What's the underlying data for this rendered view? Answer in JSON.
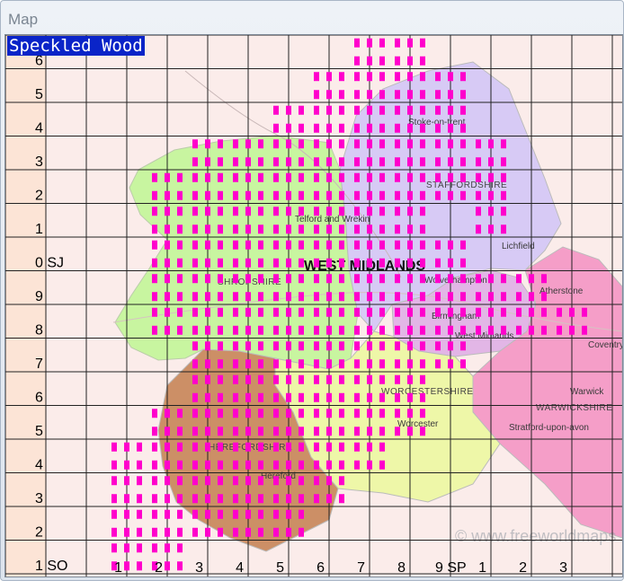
{
  "window": {
    "title": "Map"
  },
  "map": {
    "species": "Speckled Wood",
    "region_label": "WEST MIDLANDS",
    "counties": [
      "SHROPSHIRE",
      "STAFFORDSHIRE",
      "WORCESTERSHIRE",
      "HEREFORDSHIRE",
      "WARWICKSHIRE"
    ],
    "towns": [
      "Stoke-on-trent",
      "Telford and Wrekin",
      "Wolverhampton",
      "Birmingham",
      "West Midlands",
      "Lichfield",
      "Worcester",
      "Hereford",
      "Coventry",
      "Atherstone",
      "Stratford-upon-avon",
      "Warwick"
    ],
    "watermark": "© www.freeworldmaps",
    "row_labels": [
      "6",
      "5",
      "4",
      "3",
      "2",
      "1",
      "0 SJ",
      "9",
      "8",
      "7",
      "6",
      "5",
      "4",
      "3",
      "2",
      "1 SO"
    ],
    "col_labels": [
      "1",
      "2",
      "3",
      "4",
      "5",
      "6",
      "7",
      "8",
      "9 SP",
      "1",
      "2",
      "3"
    ],
    "colors": {
      "record_marker": "#ff00cc",
      "shropshire": "#c8f5a0",
      "staffordshire": "#d7caf5",
      "worcestershire": "#eef7a8",
      "herefordshire": "#cc8f66",
      "warwickshire": "#f59ec8",
      "west_midlands": "#e2b6e6",
      "background": "#fbecea"
    },
    "record_columns": [
      {
        "col": 3,
        "rows": [
          12.5,
          13.5,
          14.5,
          15.5
        ]
      },
      {
        "col": 4,
        "rows": [
          4.5,
          5.5,
          6.5,
          7.5,
          8.5,
          11.5,
          12.5,
          13.5,
          14.5,
          15.5
        ]
      },
      {
        "col": 5,
        "rows": [
          3.5,
          4.5,
          5.5,
          6.5,
          7.5,
          8.5,
          9.5,
          10.5,
          11.5,
          12.5,
          13.5,
          14.5
        ]
      },
      {
        "col": 6,
        "rows": [
          3.5,
          4.5,
          5.5,
          6.5,
          7.5,
          8.5,
          9.5,
          10.5,
          11.5,
          12.5,
          13.5,
          14.5
        ]
      },
      {
        "col": 7,
        "rows": [
          2.5,
          3.5,
          4.5,
          5.5,
          6.5,
          7.5,
          8.5,
          9.5,
          10.5,
          11.5,
          12.5,
          13.5,
          14.5
        ]
      },
      {
        "col": 8,
        "rows": [
          1.5,
          2.5,
          3.5,
          4.5,
          5.5,
          6.5,
          7.5,
          8.5,
          9.5,
          10.5,
          11.5,
          12.5,
          13.5
        ]
      },
      {
        "col": 9,
        "rows": [
          0.5,
          1.5,
          2.5,
          3.5,
          4.5,
          5.5,
          6.5,
          7.5,
          8.5,
          9.5,
          10.5,
          11.5,
          12.5
        ]
      },
      {
        "col": 10,
        "rows": [
          0.5,
          1.5,
          2.5,
          3.5,
          4.5,
          5.5,
          6.5,
          7.5,
          8.5,
          9.5,
          10.5,
          11.5
        ]
      },
      {
        "col": 11,
        "rows": [
          1.5,
          2.5,
          3.5,
          4.5,
          6.5,
          7.5,
          8.5,
          9.5
        ]
      },
      {
        "col": 12,
        "rows": [
          3.5,
          4.5,
          5.5,
          7.5,
          8.5
        ]
      },
      {
        "col": 13,
        "rows": [
          7.5,
          8.5
        ]
      },
      {
        "col": 14,
        "rows": [
          8.5
        ]
      }
    ]
  }
}
